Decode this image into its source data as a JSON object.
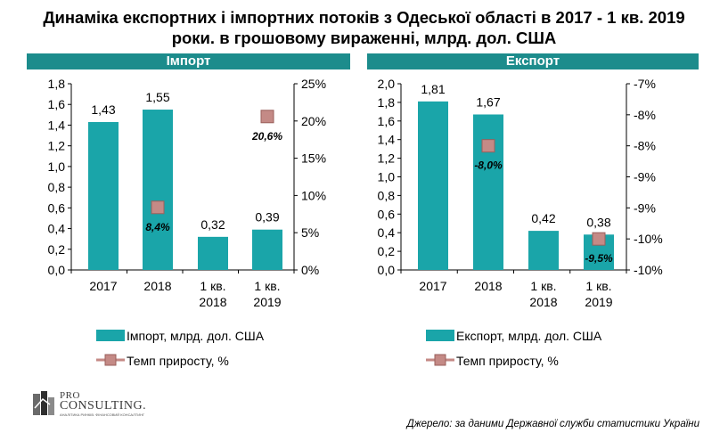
{
  "title_line1": "Динаміка експортних і імпортних потоків з Одеської області в 2017 - 1 кв. 2019",
  "title_line2": "роки. в грошовому вираженні, млрд. дол. США",
  "source": "Джерело: за даними Державної служби статистики України",
  "logo": {
    "line1": "PRO",
    "line2": "CONSULTING.",
    "line3": "АНАЛІТИКА РИНКІВ. ФІНАНСОВИЙ КОНСАЛТИНГ"
  },
  "colors": {
    "band": "#1c8c8c",
    "bar": "#1aa5a9",
    "marker": "#c48a86",
    "marker_border": "#9a5f5b"
  },
  "chart_data": [
    {
      "type": "bar",
      "section_label": "Імпорт",
      "categories": [
        [
          "2017"
        ],
        [
          "2018"
        ],
        [
          "1 кв.",
          "2018"
        ],
        [
          "1 кв.",
          "2019"
        ]
      ],
      "series": [
        {
          "name": "Імпорт, млрд. дол. США",
          "kind": "bar",
          "axis": "left",
          "values": [
            1.43,
            1.55,
            0.32,
            0.39
          ],
          "labels": [
            "1,43",
            "1,55",
            "0,32",
            "0,39"
          ]
        },
        {
          "name": "Темп приросту, %",
          "kind": "marker",
          "axis": "right",
          "values": [
            null,
            8.4,
            null,
            20.6
          ],
          "labels": [
            "",
            "8,4%",
            "",
            "20,6%"
          ]
        }
      ],
      "y_left": {
        "min": 0,
        "max": 1.8,
        "ticks": [
          "0,0",
          "0,2",
          "0,4",
          "0,6",
          "0,8",
          "1,0",
          "1,2",
          "1,4",
          "1,6",
          "1,8"
        ]
      },
      "y_right": {
        "min": 0,
        "max": 25,
        "ticks": [
          "0%",
          "5%",
          "10%",
          "15%",
          "20%",
          "25%"
        ]
      },
      "grid": false,
      "legend_position": "bottom"
    },
    {
      "type": "bar",
      "section_label": "Експорт",
      "categories": [
        [
          "2017"
        ],
        [
          "2018"
        ],
        [
          "1 кв.",
          "2018"
        ],
        [
          "1 кв.",
          "2019"
        ]
      ],
      "series": [
        {
          "name": "Експорт, млрд. дол. США",
          "kind": "bar",
          "axis": "left",
          "values": [
            1.81,
            1.67,
            0.42,
            0.38
          ],
          "labels": [
            "1,81",
            "1,67",
            "0,42",
            "0,38"
          ]
        },
        {
          "name": "Темп приросту, %",
          "kind": "marker",
          "axis": "right",
          "values": [
            null,
            -8.0,
            null,
            -9.5
          ],
          "labels": [
            "",
            "-8,0%",
            "",
            "-9,5%"
          ]
        }
      ],
      "y_left": {
        "min": 0,
        "max": 2.0,
        "ticks": [
          "0,0",
          "0,2",
          "0,4",
          "0,6",
          "0,8",
          "1,0",
          "1,2",
          "1,4",
          "1,6",
          "1,8",
          "2,0"
        ]
      },
      "y_right": {
        "min": -10,
        "max": -7,
        "ticks": [
          "-10%",
          "-10%",
          "-9%",
          "-9%",
          "-8%",
          "-8%",
          "-7%"
        ]
      },
      "grid": false,
      "legend_position": "bottom"
    }
  ]
}
